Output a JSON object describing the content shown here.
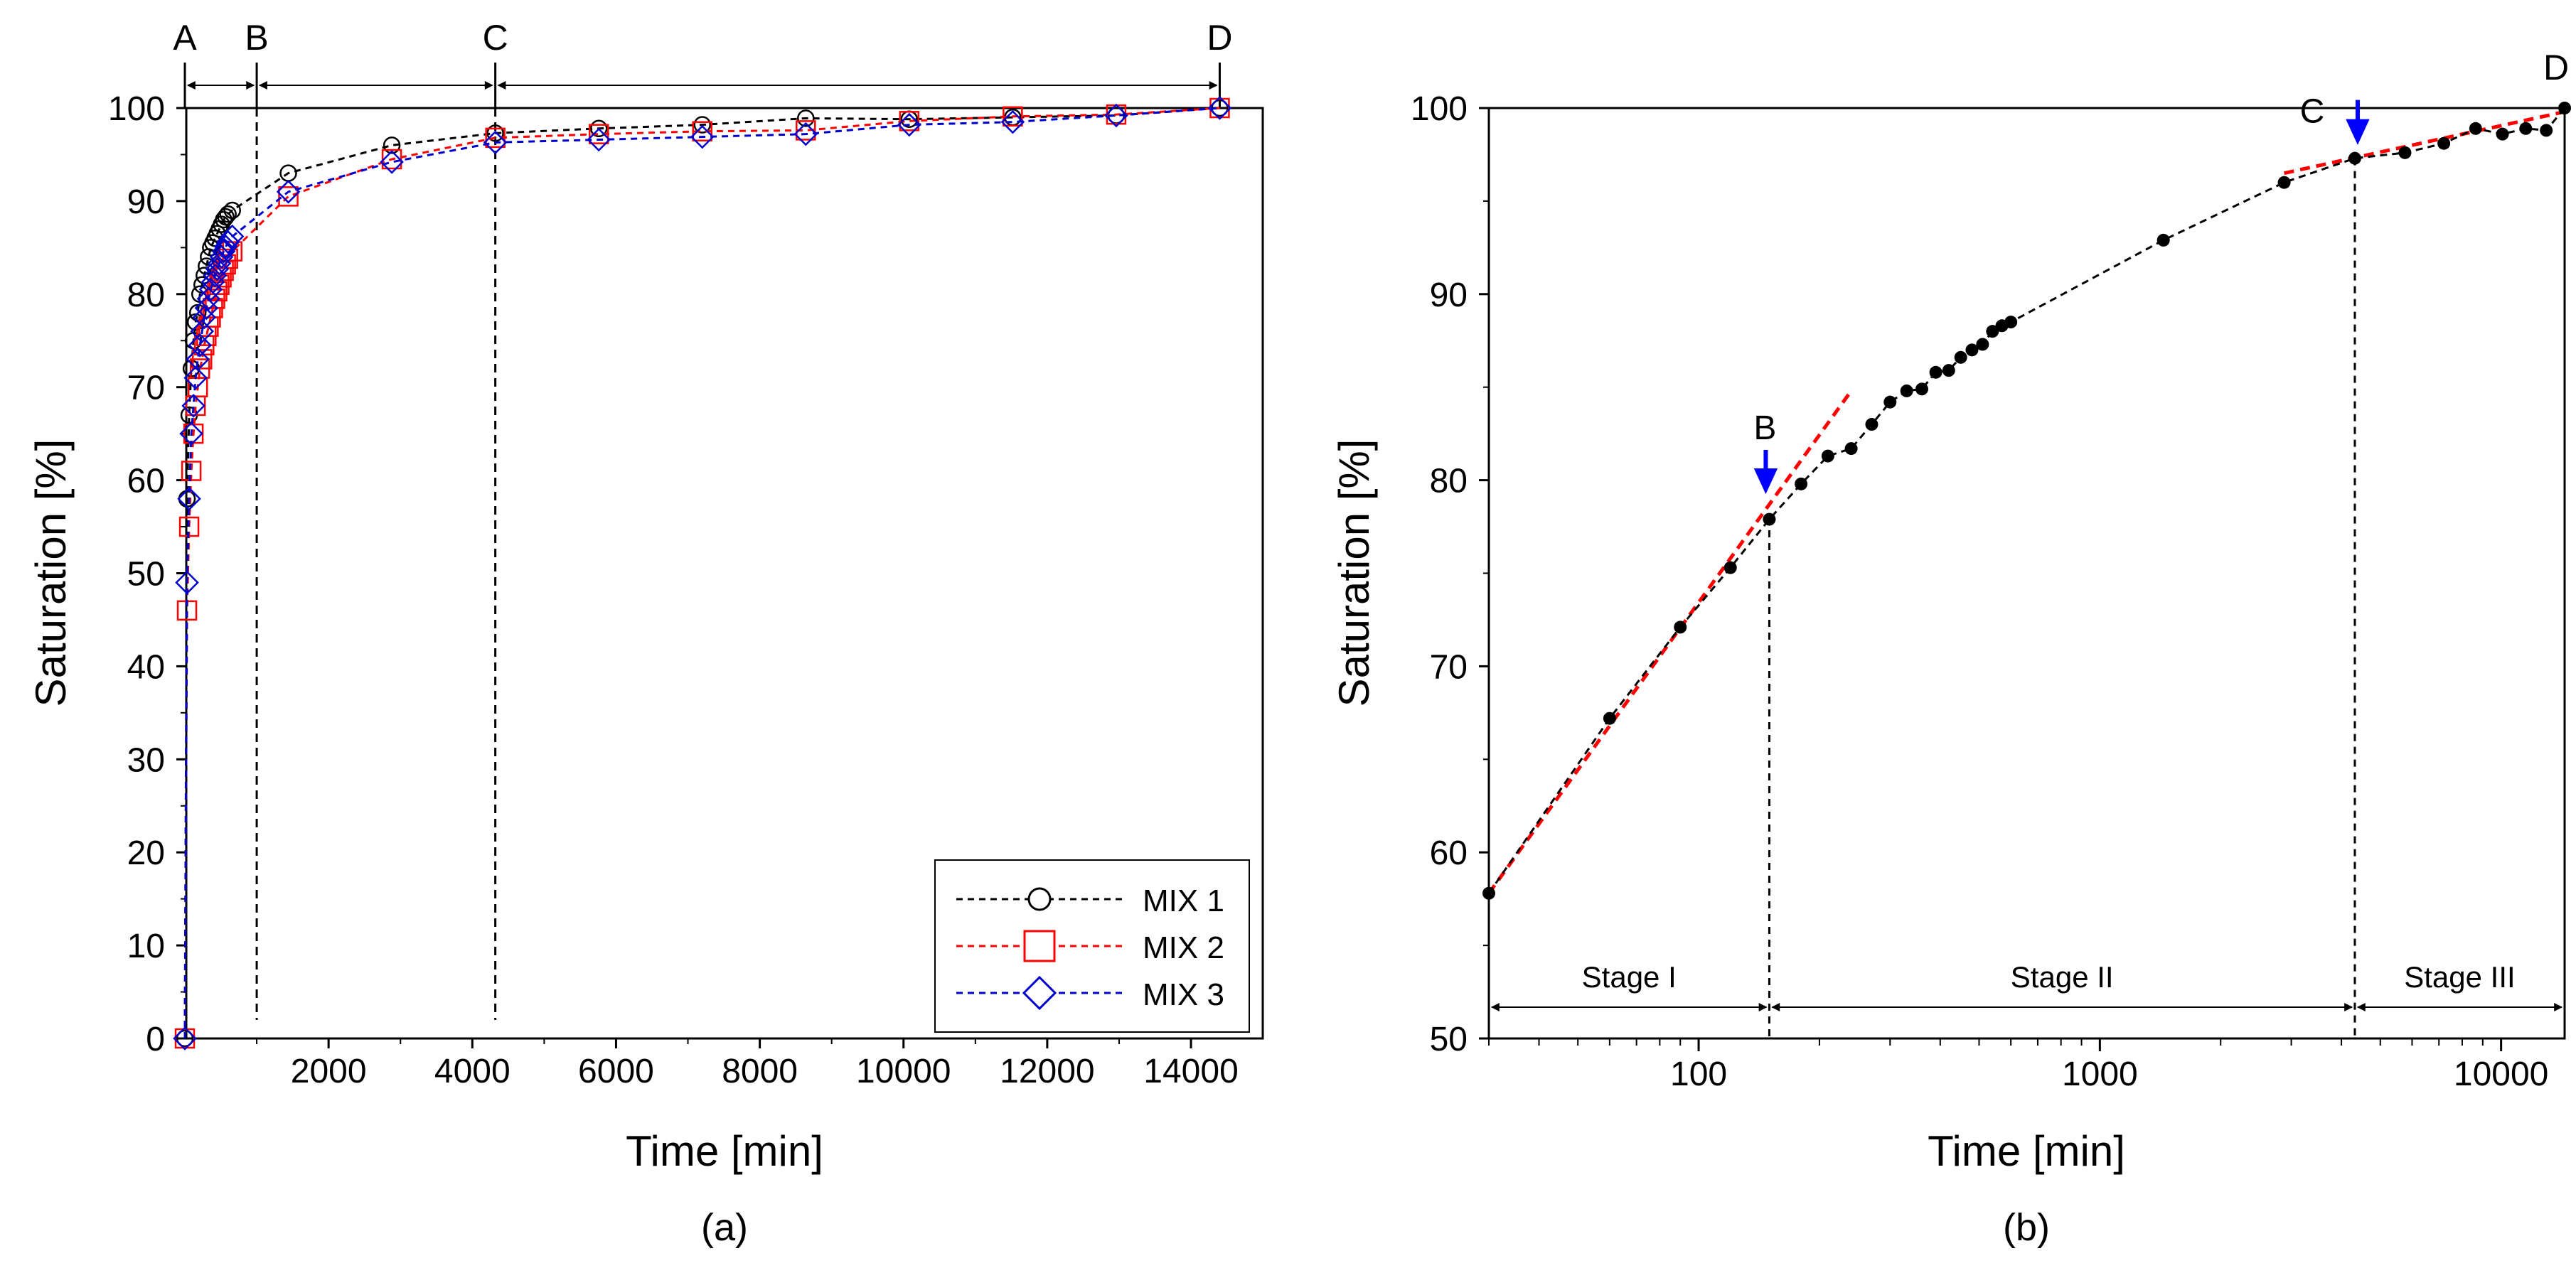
{
  "panel_labels": {
    "a": "(a)",
    "b": "(b)"
  },
  "chart_data": [
    {
      "type": "line",
      "panel": "(a)",
      "xlabel": "Time [min]",
      "ylabel": "Saturation [%]",
      "xlim": [
        0,
        14900
      ],
      "ylim": [
        0,
        100
      ],
      "x_ticks": [
        2000,
        4000,
        6000,
        8000,
        10000,
        12000,
        14000
      ],
      "x_minor_step": 1000,
      "y_ticks": [
        0,
        10,
        20,
        30,
        40,
        50,
        60,
        70,
        80,
        90,
        100
      ],
      "y_minor_step": 5,
      "stage_markers": [
        {
          "label": "A",
          "x": 0
        },
        {
          "label": "B",
          "x": 1000
        },
        {
          "label": "C",
          "x": 4320
        },
        {
          "label": "D",
          "x": 14400
        }
      ],
      "stage_lines": [
        1000,
        4320
      ],
      "legend_position": "bottom-right",
      "series": [
        {
          "name": "MIX 1",
          "color": "#000000",
          "marker": "circle",
          "x": [
            0,
            30,
            60,
            90,
            120,
            150,
            180,
            210,
            240,
            270,
            300,
            330,
            360,
            390,
            420,
            450,
            480,
            510,
            540,
            570,
            600,
            660,
            1440,
            2880,
            4320,
            5760,
            7200,
            8640,
            10080,
            11520,
            12960,
            14400
          ],
          "y": [
            0,
            58,
            67,
            72,
            75,
            77,
            78,
            80,
            81,
            82,
            83,
            84,
            85,
            85.5,
            86,
            86.5,
            87,
            87.5,
            88,
            88.3,
            88.6,
            89,
            93,
            96,
            97.3,
            97.8,
            98.2,
            98.9,
            98.8,
            99,
            99.2,
            100
          ]
        },
        {
          "name": "MIX 2",
          "color": "#ff0000",
          "marker": "square",
          "x": [
            0,
            30,
            60,
            90,
            120,
            150,
            180,
            210,
            240,
            270,
            300,
            330,
            360,
            390,
            420,
            450,
            480,
            510,
            540,
            570,
            600,
            660,
            1440,
            2880,
            4320,
            5760,
            7200,
            8640,
            10080,
            11520,
            12960,
            14400
          ],
          "y": [
            0,
            46,
            55,
            61,
            65,
            68,
            70,
            72,
            73,
            74.5,
            75.5,
            76.5,
            77.5,
            78.5,
            79.5,
            80.3,
            81,
            81.8,
            82.5,
            83.2,
            83.8,
            84.6,
            90.5,
            94.5,
            96.8,
            97.2,
            97.5,
            97.6,
            98.6,
            99.1,
            99.3,
            100
          ]
        },
        {
          "name": "MIX 3",
          "color": "#0000cc",
          "marker": "diamond",
          "x": [
            0,
            30,
            60,
            90,
            120,
            150,
            180,
            210,
            240,
            270,
            300,
            330,
            360,
            390,
            420,
            450,
            480,
            510,
            540,
            570,
            600,
            660,
            1440,
            2880,
            4320,
            5760,
            7200,
            8640,
            10080,
            11520,
            12960,
            14400
          ],
          "y": [
            0,
            49,
            58,
            65,
            68,
            71,
            73,
            74.5,
            76,
            77.5,
            78.5,
            79.5,
            80.5,
            81.3,
            82,
            82.7,
            83.3,
            84,
            84.6,
            85.1,
            85.6,
            86.2,
            91,
            94.2,
            96.3,
            96.6,
            96.9,
            97.2,
            98.2,
            98.5,
            99.2,
            100
          ]
        }
      ]
    },
    {
      "type": "scatter",
      "panel": "(b)",
      "xscale": "log",
      "xlabel": "Time [min]",
      "ylabel": "Saturation [%]",
      "xlim": [
        30,
        14400
      ],
      "ylim": [
        50,
        100
      ],
      "x_ticks": [
        100,
        1000,
        10000
      ],
      "y_ticks": [
        50,
        60,
        70,
        80,
        90,
        100
      ],
      "y_minor_step": 5,
      "points": {
        "x": [
          30,
          60,
          90,
          120,
          150,
          180,
          210,
          240,
          270,
          300,
          330,
          360,
          390,
          420,
          450,
          480,
          510,
          540,
          570,
          600,
          1440,
          2880,
          4320,
          5760,
          7200,
          8640,
          10080,
          11520,
          12960,
          14400
        ],
        "y": [
          57.8,
          67.2,
          72.1,
          75.3,
          77.9,
          79.8,
          81.3,
          81.7,
          83,
          84.2,
          84.8,
          84.9,
          85.8,
          85.9,
          86.6,
          87,
          87.3,
          88,
          88.3,
          88.5,
          92.9,
          96,
          97.3,
          97.6,
          98.1,
          98.9,
          98.6,
          98.9,
          98.8,
          100
        ],
        "color": "#000000"
      },
      "trend_lines": [
        {
          "color": "#ff0000",
          "x": [
            30,
            240
          ],
          "y": [
            57.8,
            84.8
          ]
        },
        {
          "color": "#ff0000",
          "x": [
            2880,
            14400
          ],
          "y": [
            96.5,
            99.8
          ]
        }
      ],
      "stage_lines": [
        150,
        4320
      ],
      "annotations": [
        {
          "label": "B",
          "x": 150,
          "y": 78
        },
        {
          "label": "C",
          "x": 4320,
          "y": 97.3
        },
        {
          "label": "D",
          "x": 14400,
          "y": 100
        }
      ],
      "arrow_color": "#0000ff",
      "stages": [
        {
          "label": "Stage I",
          "x0": 30,
          "x1": 150
        },
        {
          "label": "Stage II",
          "x0": 150,
          "x1": 4320
        },
        {
          "label": "Stage III",
          "x0": 4320,
          "x1": 14400
        }
      ]
    }
  ]
}
